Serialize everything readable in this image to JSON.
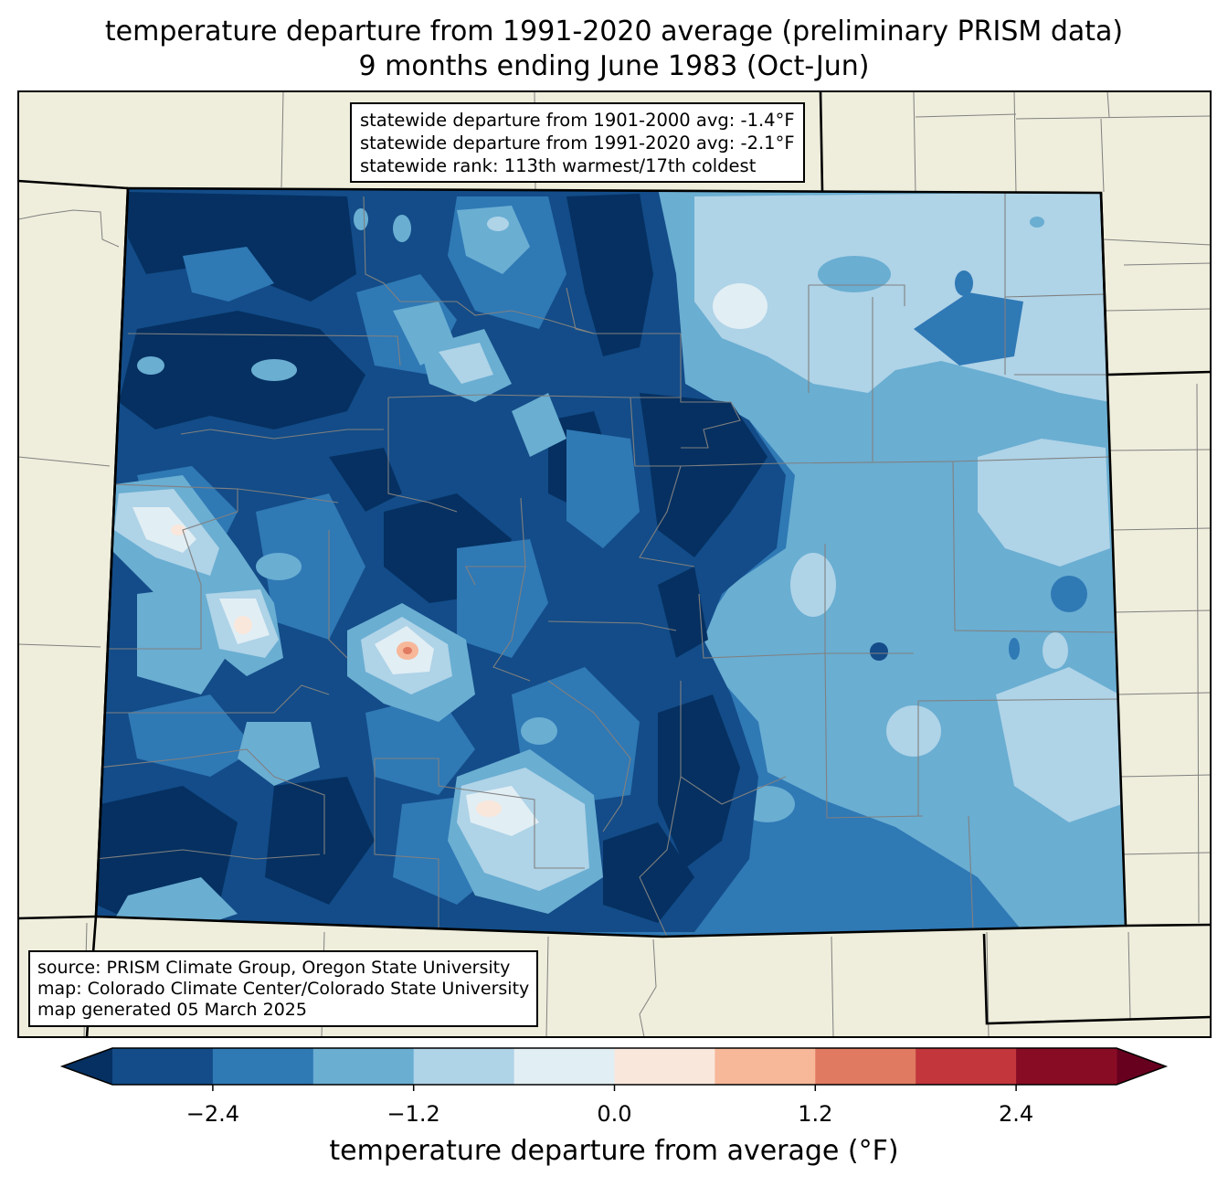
{
  "title": {
    "line1": "temperature departure from 1991-2020 average (preliminary PRISM data)",
    "line2": "9 months ending June 1983 (Oct-Jun)"
  },
  "stats": {
    "line1": "statewide departure from 1901-2000 avg: -1.4°F",
    "line2": "statewide departure from 1991-2020 avg: -2.1°F",
    "line3": "statewide rank: 113th warmest/17th coldest"
  },
  "source": {
    "line1": "source: PRISM Climate Group, Oregon State University",
    "line2": "map: Colorado Climate Center/Colorado State University",
    "line3": "map generated 05 March 2025"
  },
  "colorbar": {
    "label": "temperature departure from average (°F)",
    "range": [
      -3.0,
      3.0
    ],
    "step": 0.6,
    "extend": "both",
    "ticks": [
      {
        "value": -2.4,
        "text": "−2.4"
      },
      {
        "value": -1.2,
        "text": "−1.2"
      },
      {
        "value": 0.0,
        "text": "0.0"
      },
      {
        "value": 1.2,
        "text": "1.2"
      },
      {
        "value": 2.4,
        "text": "2.4"
      }
    ],
    "under_color": "#053061",
    "over_color": "#67001f",
    "colors": [
      "#134c88",
      "#2f79b5",
      "#6aaed2",
      "#afd3e7",
      "#e1eef4",
      "#fae7dc",
      "#f7b799",
      "#e07a61",
      "#c2363c",
      "#890c25"
    ]
  },
  "map_colors": {
    "background_land": "#efeedc",
    "state_border": "#000000",
    "county_border": "#808080",
    "bin_m30": "#053061",
    "bin_m24": "#134c88",
    "bin_m18": "#2f79b5",
    "bin_m12": "#6aaed2",
    "bin_m06": "#afd3e7",
    "bin_00": "#e1eef4",
    "bin_p06": "#fae7dc",
    "bin_p12": "#f7b799"
  }
}
